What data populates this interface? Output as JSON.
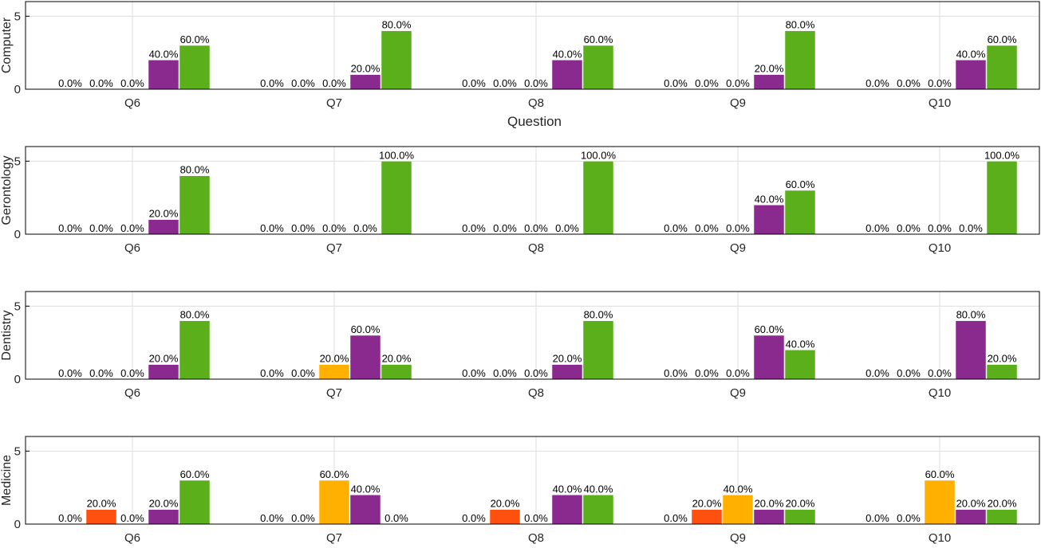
{
  "colors": {
    "series": [
      "#2b5fb0",
      "#ff5010",
      "#ffb000",
      "#8a2a8f",
      "#5aaf1a"
    ],
    "grid": "#dedede",
    "axis": "#000000"
  },
  "chart_data": [
    {
      "type": "bar",
      "ylabel": "Computer",
      "xlabel": "Question",
      "ylim": [
        0,
        6
      ],
      "yticks": [
        0,
        5
      ],
      "categories": [
        "Q6",
        "Q7",
        "Q8",
        "Q9",
        "Q10"
      ],
      "values": [
        [
          0,
          0,
          0,
          2,
          3
        ],
        [
          0,
          0,
          0,
          1,
          4
        ],
        [
          0,
          0,
          0,
          2,
          3
        ],
        [
          0,
          0,
          0,
          1,
          4
        ],
        [
          0,
          0,
          0,
          2,
          3
        ]
      ],
      "labels": [
        [
          "0.0%",
          "0.0%",
          "0.0%",
          "40.0%",
          "60.0%"
        ],
        [
          "0.0%",
          "0.0%",
          "0.0%",
          "20.0%",
          "80.0%"
        ],
        [
          "0.0%",
          "0.0%",
          "0.0%",
          "40.0%",
          "60.0%"
        ],
        [
          "0.0%",
          "0.0%",
          "0.0%",
          "20.0%",
          "80.0%"
        ],
        [
          "0.0%",
          "0.0%",
          "0.0%",
          "40.0%",
          "60.0%"
        ]
      ]
    },
    {
      "type": "bar",
      "ylabel": "Gerontology",
      "xlabel": "",
      "ylim": [
        0,
        6
      ],
      "yticks": [
        0,
        5
      ],
      "categories": [
        "Q6",
        "Q7",
        "Q8",
        "Q9",
        "Q10"
      ],
      "values": [
        [
          0,
          0,
          0,
          1,
          4
        ],
        [
          0,
          0,
          0,
          0,
          5
        ],
        [
          0,
          0,
          0,
          0,
          5
        ],
        [
          0,
          0,
          0,
          2,
          3
        ],
        [
          0,
          0,
          0,
          0,
          5
        ]
      ],
      "labels": [
        [
          "0.0%",
          "0.0%",
          "0.0%",
          "20.0%",
          "80.0%"
        ],
        [
          "0.0%",
          "0.0%",
          "0.0%",
          "0.0%",
          "100.0%"
        ],
        [
          "0.0%",
          "0.0%",
          "0.0%",
          "0.0%",
          "100.0%"
        ],
        [
          "0.0%",
          "0.0%",
          "0.0%",
          "40.0%",
          "60.0%"
        ],
        [
          "0.0%",
          "0.0%",
          "0.0%",
          "0.0%",
          "100.0%"
        ]
      ]
    },
    {
      "type": "bar",
      "ylabel": "Dentistry",
      "xlabel": "",
      "ylim": [
        0,
        6
      ],
      "yticks": [
        0,
        5
      ],
      "categories": [
        "Q6",
        "Q7",
        "Q8",
        "Q9",
        "Q10"
      ],
      "values": [
        [
          0,
          0,
          0,
          1,
          4
        ],
        [
          0,
          0,
          1,
          3,
          1
        ],
        [
          0,
          0,
          0,
          1,
          4
        ],
        [
          0,
          0,
          0,
          3,
          2
        ],
        [
          0,
          0,
          0,
          4,
          1
        ]
      ],
      "labels": [
        [
          "0.0%",
          "0.0%",
          "0.0%",
          "20.0%",
          "80.0%"
        ],
        [
          "0.0%",
          "0.0%",
          "20.0%",
          "60.0%",
          "20.0%"
        ],
        [
          "0.0%",
          "0.0%",
          "0.0%",
          "20.0%",
          "80.0%"
        ],
        [
          "0.0%",
          "0.0%",
          "0.0%",
          "60.0%",
          "40.0%"
        ],
        [
          "0.0%",
          "0.0%",
          "0.0%",
          "80.0%",
          "20.0%"
        ]
      ]
    },
    {
      "type": "bar",
      "ylabel": "Medicine",
      "xlabel": "",
      "ylim": [
        0,
        6
      ],
      "yticks": [
        0,
        5
      ],
      "categories": [
        "Q6",
        "Q7",
        "Q8",
        "Q9",
        "Q10"
      ],
      "values": [
        [
          0,
          1,
          0,
          1,
          3
        ],
        [
          0,
          0,
          3,
          2,
          0
        ],
        [
          0,
          1,
          0,
          2,
          2
        ],
        [
          0,
          1,
          2,
          1,
          1
        ],
        [
          0,
          0,
          3,
          1,
          1
        ]
      ],
      "labels": [
        [
          "0.0%",
          "20.0%",
          "0.0%",
          "20.0%",
          "60.0%"
        ],
        [
          "0.0%",
          "0.0%",
          "60.0%",
          "40.0%",
          "0.0%"
        ],
        [
          "0.0%",
          "20.0%",
          "0.0%",
          "40.0%",
          "40.0%"
        ],
        [
          "0.0%",
          "20.0%",
          "40.0%",
          "20.0%",
          "20.0%"
        ],
        [
          "0.0%",
          "0.0%",
          "60.0%",
          "20.0%",
          "20.0%"
        ]
      ]
    }
  ]
}
